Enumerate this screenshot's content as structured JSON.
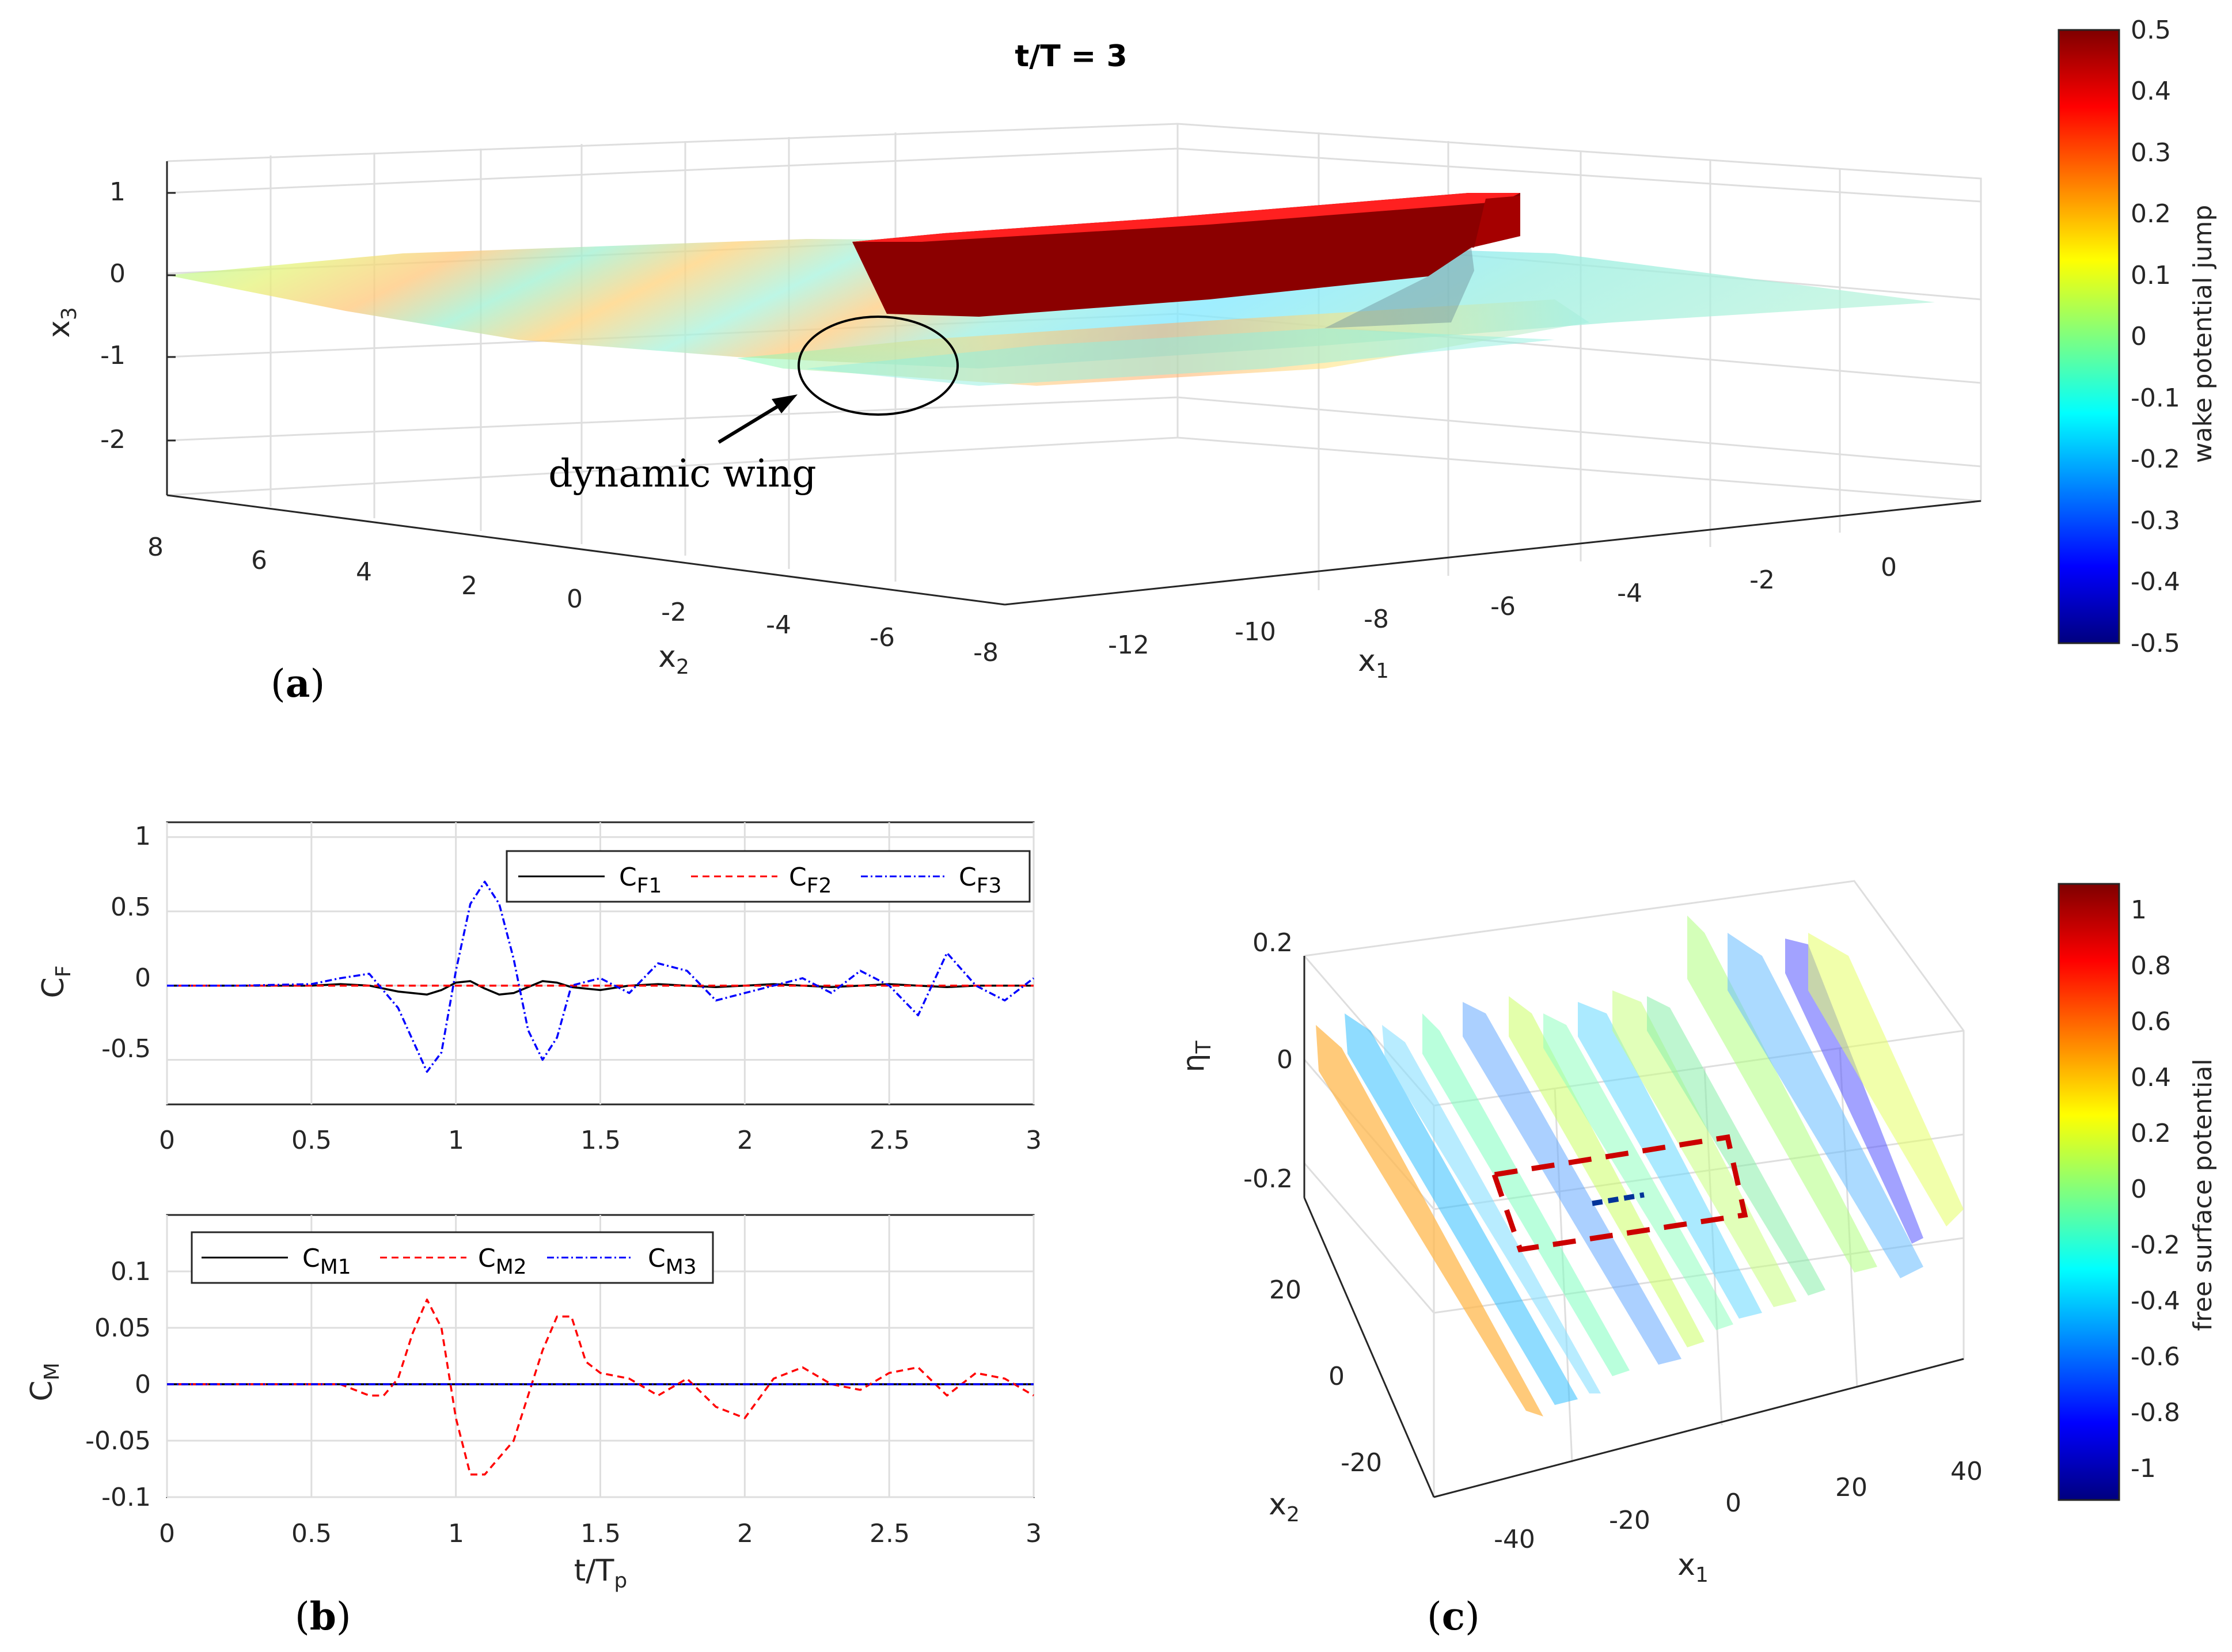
{
  "colormap": [
    "#00007f",
    "#0000ff",
    "#007fff",
    "#00ffff",
    "#7fff7f",
    "#ffff00",
    "#ff7f00",
    "#ff0000",
    "#7f0000"
  ],
  "panel_a": {
    "title": "t/T = 3",
    "x3_label": "x",
    "x3_sub": "3",
    "x2_label": "x",
    "x2_sub": "2",
    "x1_label": "x",
    "x1_sub": "1",
    "x3_ticks": [
      "1",
      "0",
      "-1",
      "-2"
    ],
    "x2_ticks": [
      "8",
      "6",
      "4",
      "2",
      "0",
      "-2",
      "-4",
      "-6",
      "-8"
    ],
    "x1_ticks": [
      "-12",
      "-10",
      "-8",
      "-6",
      "-4",
      "-2",
      "0"
    ],
    "annotation": "dynamic wing",
    "panel_label_open": "(",
    "panel_label_letter": "a",
    "panel_label_close": ")",
    "colorbar_label": "wake potential jump",
    "colorbar_ticks": [
      "0.5",
      "0.4",
      "0.3",
      "0.2",
      "0.1",
      "0",
      "-0.1",
      "-0.2",
      "-0.3",
      "-0.4",
      "-0.5"
    ]
  },
  "panel_b": {
    "panel_label_open": "(",
    "panel_label_letter": "b",
    "panel_label_close": ")",
    "xlabel": "t/T",
    "xlabel_sub": "p",
    "cf_ylabel": "C",
    "cf_ylabel_sub": "F",
    "cm_ylabel": "C",
    "cm_ylabel_sub": "M",
    "x_ticks": [
      "0",
      "0.5",
      "1",
      "1.5",
      "2",
      "2.5",
      "3"
    ],
    "cf_y_ticks": [
      "1",
      "0.5",
      "0",
      "-0.5"
    ],
    "cm_y_ticks": [
      "0.1",
      "0.05",
      "0",
      "-0.05",
      "-0.1"
    ],
    "cf_legend": [
      {
        "label": "C",
        "sub": "F1",
        "color": "#000000"
      },
      {
        "label": "C",
        "sub": "F2",
        "color": "#ff0000"
      },
      {
        "label": "C",
        "sub": "F3",
        "color": "#0000ff"
      }
    ],
    "cm_legend": [
      {
        "label": "C",
        "sub": "M1",
        "color": "#000000"
      },
      {
        "label": "C",
        "sub": "M2",
        "color": "#ff0000"
      },
      {
        "label": "C",
        "sub": "M3",
        "color": "#0000ff"
      }
    ]
  },
  "panel_c": {
    "panel_label_open": "(",
    "panel_label_letter": "c",
    "panel_label_close": ")",
    "eta_label": "η",
    "eta_sub": "T",
    "x2_label": "x",
    "x2_sub": "2",
    "x1_label": "x",
    "x1_sub": "1",
    "eta_ticks": [
      "0.2",
      "0",
      "-0.2"
    ],
    "x2_ticks": [
      "20",
      "0",
      "-20"
    ],
    "x1_ticks": [
      "-40",
      "-20",
      "0",
      "20",
      "40"
    ],
    "colorbar_label": "free surface potential",
    "colorbar_ticks": [
      "1",
      "0.8",
      "0.6",
      "0.4",
      "0.2",
      "0",
      "-0.2",
      "-0.4",
      "-0.6",
      "-0.8",
      "-1"
    ]
  },
  "chart_data": [
    {
      "type": "line",
      "title": "",
      "xlabel": "t/Tp",
      "ylabel": "CF",
      "xlim": [
        0,
        3
      ],
      "ylim": [
        -0.8,
        1.1
      ],
      "x": [
        0,
        0.25,
        0.5,
        0.6,
        0.7,
        0.8,
        0.9,
        0.95,
        1.0,
        1.05,
        1.1,
        1.15,
        1.2,
        1.25,
        1.3,
        1.35,
        1.4,
        1.5,
        1.6,
        1.7,
        1.8,
        1.9,
        2.0,
        2.1,
        2.2,
        2.3,
        2.4,
        2.5,
        2.6,
        2.7,
        2.8,
        2.9,
        3.0
      ],
      "series": [
        {
          "name": "CF1",
          "values": [
            0,
            0,
            0,
            0.01,
            0,
            -0.04,
            -0.06,
            -0.03,
            0.02,
            0.03,
            -0.02,
            -0.06,
            -0.05,
            -0.01,
            0.03,
            0.02,
            -0.01,
            -0.03,
            0,
            0.01,
            0,
            -0.01,
            0,
            0.01,
            0,
            -0.01,
            0,
            0.01,
            0,
            -0.01,
            0,
            0,
            0
          ]
        },
        {
          "name": "CF2",
          "values": [
            0,
            0,
            0,
            0,
            0,
            0,
            0,
            0,
            0,
            0,
            0,
            0,
            0,
            0,
            0,
            0,
            0,
            0,
            0,
            0,
            0,
            0,
            0,
            0,
            0,
            0,
            0,
            0,
            0,
            0,
            0,
            0,
            0
          ]
        },
        {
          "name": "CF3",
          "values": [
            0,
            0,
            0.01,
            0.05,
            0.08,
            -0.15,
            -0.58,
            -0.45,
            0.1,
            0.55,
            0.7,
            0.55,
            0.18,
            -0.3,
            -0.5,
            -0.35,
            0.0,
            0.05,
            -0.05,
            0.15,
            0.1,
            -0.1,
            -0.05,
            0.0,
            0.05,
            -0.05,
            0.1,
            0.0,
            -0.2,
            0.22,
            0.0,
            -0.1,
            0.05
          ]
        }
      ]
    },
    {
      "type": "line",
      "title": "",
      "xlabel": "t/Tp",
      "ylabel": "CM",
      "xlim": [
        0,
        3
      ],
      "ylim": [
        -0.1,
        0.15
      ],
      "x": [
        0,
        0.25,
        0.5,
        0.6,
        0.7,
        0.75,
        0.8,
        0.85,
        0.9,
        0.95,
        1.0,
        1.05,
        1.1,
        1.15,
        1.2,
        1.25,
        1.3,
        1.35,
        1.4,
        1.45,
        1.5,
        1.6,
        1.7,
        1.8,
        1.9,
        2.0,
        2.1,
        2.2,
        2.3,
        2.4,
        2.5,
        2.6,
        2.7,
        2.8,
        2.9,
        3.0
      ],
      "series": [
        {
          "name": "CM1",
          "values": [
            0,
            0,
            0,
            0,
            0,
            0,
            0,
            0,
            0,
            0,
            0,
            0,
            0,
            0,
            0,
            0,
            0,
            0,
            0,
            0,
            0,
            0,
            0,
            0,
            0,
            0,
            0,
            0,
            0,
            0,
            0,
            0,
            0,
            0,
            0,
            0
          ]
        },
        {
          "name": "CM2",
          "values": [
            0,
            0,
            0,
            0,
            -0.01,
            -0.01,
            0.005,
            0.045,
            0.075,
            0.05,
            -0.03,
            -0.08,
            -0.08,
            -0.065,
            -0.05,
            -0.01,
            0.03,
            0.06,
            0.06,
            0.02,
            0.01,
            0.005,
            -0.01,
            0.005,
            -0.02,
            -0.03,
            0.005,
            0.015,
            0.0,
            -0.005,
            0.01,
            0.015,
            -0.01,
            0.01,
            0.005,
            -0.01
          ]
        },
        {
          "name": "CM3",
          "values": [
            0,
            0,
            0,
            0,
            0,
            0,
            0,
            0,
            0,
            0,
            0,
            0,
            0,
            0,
            0,
            0,
            0,
            0,
            0,
            0,
            0,
            0,
            0,
            0,
            0,
            0,
            0,
            0,
            0,
            0,
            0,
            0,
            0,
            0,
            0,
            0
          ]
        }
      ]
    }
  ]
}
